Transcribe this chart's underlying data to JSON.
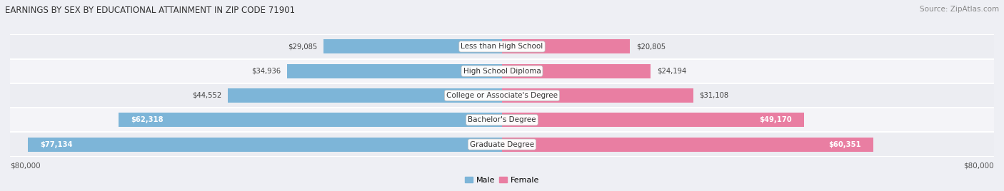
{
  "title": "EARNINGS BY SEX BY EDUCATIONAL ATTAINMENT IN ZIP CODE 71901",
  "source": "Source: ZipAtlas.com",
  "categories": [
    "Graduate Degree",
    "Bachelor's Degree",
    "College or Associate's Degree",
    "High School Diploma",
    "Less than High School"
  ],
  "male_values": [
    77134,
    62318,
    44552,
    34936,
    29085
  ],
  "female_values": [
    60351,
    49170,
    31108,
    24194,
    20805
  ],
  "male_color": "#7DB5D8",
  "female_color": "#E97EA2",
  "row_bg_colors": [
    "#ECEDF2",
    "#F4F4F8"
  ],
  "max_value": 80000,
  "xlabel_left": "$80,000",
  "xlabel_right": "$80,000",
  "bar_height": 0.58,
  "figsize": [
    14.06,
    2.68
  ],
  "dpi": 100,
  "male_label_threshold": 50000,
  "female_label_threshold": 40000
}
